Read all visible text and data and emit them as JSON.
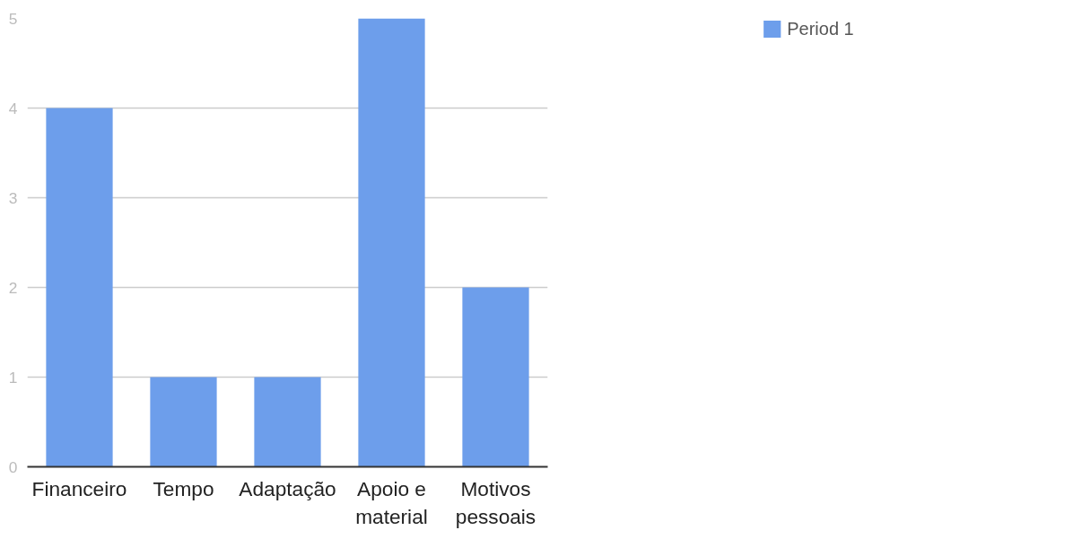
{
  "chart_data": {
    "type": "bar",
    "categories": [
      "Financeiro",
      "Tempo",
      "Adaptação",
      "Apoio e material",
      "Motivos pessoais"
    ],
    "series": [
      {
        "name": "Period 1",
        "color": "#6d9eeb",
        "values": [
          4,
          1,
          1,
          5,
          2
        ]
      }
    ],
    "ylim": [
      0,
      5
    ],
    "yticks": [
      0,
      1,
      2,
      3,
      4,
      5
    ],
    "grid": "y",
    "legend": "top right"
  }
}
